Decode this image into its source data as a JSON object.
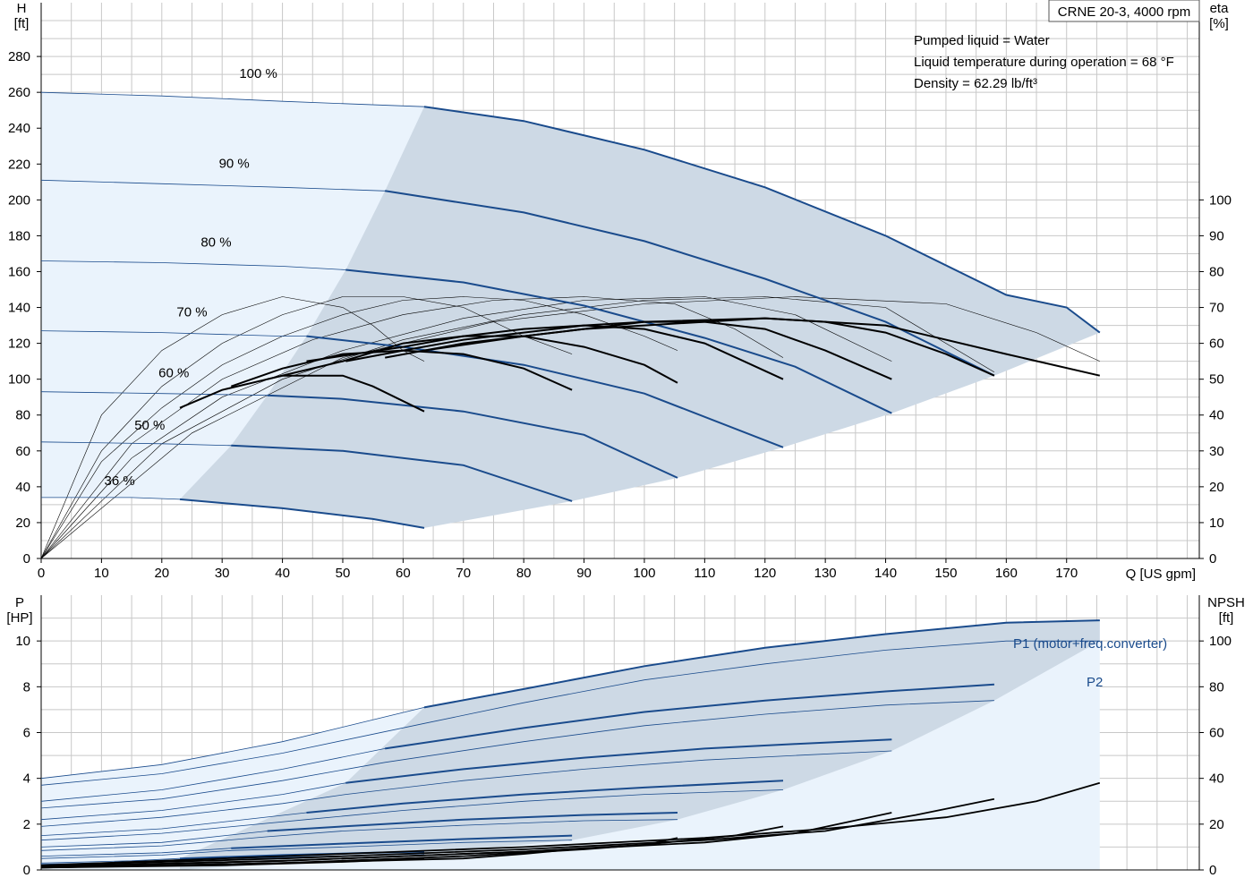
{
  "chart_data": [
    {
      "type": "line",
      "title": "CRNE 20-3, 4000 rpm",
      "notes": [
        "Pumped liquid = Water",
        "Liquid temperature during operation = 68 °F",
        "Density = 62.29 lb/ft³"
      ],
      "xlabel": "Q [US gpm]",
      "ylabel": [
        "H",
        "[ft]"
      ],
      "y2label": [
        "eta",
        "[%]"
      ],
      "xlim": [
        0,
        192
      ],
      "ylim": [
        0,
        310
      ],
      "y2lim": [
        0,
        155
      ],
      "x_ticks": [
        0,
        10,
        20,
        30,
        40,
        50,
        60,
        70,
        80,
        90,
        100,
        110,
        120,
        130,
        140,
        150,
        160,
        170
      ],
      "y_ticks": [
        0,
        20,
        40,
        60,
        80,
        100,
        120,
        140,
        160,
        180,
        200,
        220,
        240,
        260,
        280
      ],
      "y2_ticks": [
        0,
        10,
        20,
        30,
        40,
        50,
        60,
        70,
        80,
        90,
        100
      ],
      "colors": {
        "curve": "#1a4b8c",
        "eta": "#000000",
        "light_fill": "#eaf3fc",
        "dark_fill": "#cdd9e5",
        "grid": "#c8c8c8"
      },
      "speed_curves": [
        {
          "label": "100 %",
          "x": [
            0,
            20,
            40,
            63.5,
            80,
            100,
            120,
            140,
            160,
            170,
            175.5
          ],
          "y": [
            260,
            258,
            255,
            252,
            244,
            228,
            207,
            180,
            147,
            140,
            126
          ]
        },
        {
          "label": "90 %",
          "x": [
            0,
            20,
            40,
            57,
            80,
            100,
            120,
            140,
            158
          ],
          "y": [
            211,
            209,
            207,
            205,
            193,
            177,
            156,
            132,
            102
          ]
        },
        {
          "label": "80 %",
          "x": [
            0,
            20,
            40,
            50.5,
            70,
            90,
            110,
            125,
            141
          ],
          "y": [
            166,
            165,
            163,
            161,
            154,
            141,
            123,
            107,
            81
          ]
        },
        {
          "label": "70 %",
          "x": [
            0,
            20,
            40,
            44,
            60,
            80,
            100,
            123
          ],
          "y": [
            127,
            126,
            124,
            124,
            118,
            108,
            92,
            62
          ]
        },
        {
          "label": "60 %",
          "x": [
            0,
            20,
            37.5,
            50,
            70,
            90,
            105.5
          ],
          "y": [
            93,
            92,
            91,
            89,
            82,
            69,
            45
          ]
        },
        {
          "label": "50 %",
          "x": [
            0,
            20,
            31.5,
            50,
            70,
            88
          ],
          "y": [
            65,
            64,
            63,
            60,
            52,
            32
          ]
        },
        {
          "label": "36 %",
          "x": [
            0,
            15,
            23,
            40,
            55,
            63.5
          ],
          "y": [
            34,
            34,
            33,
            28,
            22,
            17
          ]
        }
      ],
      "eta_curves": [
        {
          "x": [
            23,
            30,
            40,
            50,
            55,
            63.5
          ],
          "y": [
            42,
            47,
            51,
            51,
            48,
            41
          ]
        },
        {
          "x": [
            31.5,
            40,
            50,
            60,
            70,
            80,
            88
          ],
          "y": [
            48,
            53,
            57,
            58,
            57,
            53,
            47
          ]
        },
        {
          "x": [
            37.5,
            50,
            60,
            70,
            80,
            90,
            100,
            105.5
          ],
          "y": [
            50,
            55,
            60,
            62,
            62,
            59,
            54,
            49
          ]
        },
        {
          "x": [
            44,
            60,
            70,
            80,
            90,
            100,
            110,
            123
          ],
          "y": [
            55,
            59,
            62,
            64,
            65,
            64,
            60,
            50
          ]
        },
        {
          "x": [
            50.5,
            60,
            70,
            80,
            90,
            100,
            110,
            120,
            130,
            141
          ],
          "y": [
            55,
            58,
            61,
            63,
            65,
            66,
            66,
            64,
            58,
            50
          ]
        },
        {
          "x": [
            57,
            70,
            80,
            90,
            100,
            110,
            120,
            130,
            140,
            150,
            158
          ],
          "y": [
            56,
            60,
            62,
            64,
            65,
            66,
            67,
            66,
            63,
            57,
            51
          ]
        },
        {
          "x": [
            63.5,
            80,
            100,
            120,
            140,
            160,
            175.5
          ],
          "y": [
            58,
            62,
            66,
            67,
            65,
            57,
            51
          ]
        }
      ],
      "eta_extensions": [
        {
          "x": [
            0,
            10,
            20,
            30,
            40,
            50,
            55,
            60,
            63.5
          ],
          "y": [
            0,
            40,
            58,
            68,
            73,
            70,
            65,
            58,
            55
          ]
        },
        {
          "x": [
            0,
            10,
            20,
            30,
            40,
            50,
            60,
            70,
            80,
            88
          ],
          "y": [
            0,
            30,
            48,
            60,
            68,
            73,
            73,
            70,
            62,
            57
          ]
        },
        {
          "x": [
            0,
            10,
            20,
            30,
            40,
            50,
            60,
            70,
            80,
            90,
            100,
            105.5
          ],
          "y": [
            0,
            27,
            42,
            54,
            62,
            68,
            72,
            73,
            72,
            68,
            62,
            58
          ]
        },
        {
          "x": [
            0,
            15,
            30,
            45,
            60,
            75,
            90,
            105,
            115,
            123
          ],
          "y": [
            0,
            32,
            50,
            61,
            68,
            72,
            73,
            71,
            64,
            56
          ]
        },
        {
          "x": [
            0,
            15,
            30,
            50,
            70,
            90,
            110,
            125,
            141
          ],
          "y": [
            0,
            28,
            45,
            58,
            67,
            72,
            73,
            68,
            55
          ]
        },
        {
          "x": [
            0,
            20,
            40,
            60,
            80,
            100,
            120,
            140,
            158
          ],
          "y": [
            0,
            32,
            50,
            61,
            68,
            72,
            73,
            70,
            52
          ]
        },
        {
          "x": [
            0,
            25,
            50,
            75,
            100,
            125,
            150,
            165,
            175.5
          ],
          "y": [
            0,
            35,
            56,
            66,
            71,
            73,
            71,
            63,
            55
          ]
        }
      ]
    },
    {
      "type": "line",
      "xlim": [
        0,
        192
      ],
      "ylim": [
        0,
        12
      ],
      "y2lim": [
        0,
        120
      ],
      "ylabel": [
        "P",
        "[HP]"
      ],
      "y2label": [
        "NPSH",
        "[ft]"
      ],
      "y_ticks": [
        0,
        2,
        4,
        6,
        8,
        10
      ],
      "y2_ticks": [
        0,
        20,
        40,
        60,
        80,
        100
      ],
      "series_labels": {
        "p1": "P1 (motor+freq.converter)",
        "p2": "P2"
      },
      "p1_curves": [
        {
          "x": [
            0,
            20,
            40,
            63.5,
            80,
            100,
            120,
            140,
            160,
            175.5
          ],
          "y": [
            4.0,
            4.6,
            5.6,
            7.1,
            7.9,
            8.9,
            9.7,
            10.3,
            10.8,
            10.9
          ]
        },
        {
          "x": [
            0,
            20,
            40,
            57,
            80,
            100,
            120,
            140,
            158
          ],
          "y": [
            3.0,
            3.5,
            4.4,
            5.3,
            6.2,
            6.9,
            7.4,
            7.8,
            8.1
          ]
        },
        {
          "x": [
            0,
            20,
            40,
            50.5,
            70,
            90,
            110,
            125,
            141
          ],
          "y": [
            2.2,
            2.6,
            3.3,
            3.8,
            4.4,
            4.9,
            5.3,
            5.5,
            5.7
          ]
        },
        {
          "x": [
            0,
            20,
            44,
            60,
            80,
            100,
            123
          ],
          "y": [
            1.5,
            1.8,
            2.5,
            2.9,
            3.3,
            3.6,
            3.9
          ]
        },
        {
          "x": [
            0,
            20,
            37.5,
            50,
            70,
            90,
            105.5
          ],
          "y": [
            1.0,
            1.2,
            1.7,
            1.9,
            2.2,
            2.4,
            2.5
          ]
        },
        {
          "x": [
            0,
            20,
            31.5,
            50,
            70,
            88
          ],
          "y": [
            0.6,
            0.75,
            0.95,
            1.15,
            1.35,
            1.5
          ]
        },
        {
          "x": [
            0,
            15,
            23,
            40,
            55,
            63.5
          ],
          "y": [
            0.3,
            0.4,
            0.5,
            0.65,
            0.75,
            0.8
          ]
        }
      ],
      "p2_curves": [
        {
          "x": [
            0,
            20,
            40,
            63.5,
            80,
            100,
            120,
            140,
            160,
            175.5
          ],
          "y": [
            3.7,
            4.2,
            5.1,
            6.4,
            7.3,
            8.3,
            9.0,
            9.6,
            10.0,
            10.0
          ]
        },
        {
          "x": [
            0,
            20,
            40,
            57,
            80,
            100,
            120,
            140,
            158
          ],
          "y": [
            2.7,
            3.1,
            3.9,
            4.7,
            5.6,
            6.3,
            6.8,
            7.2,
            7.4
          ]
        },
        {
          "x": [
            0,
            20,
            40,
            50.5,
            70,
            90,
            110,
            125,
            141
          ],
          "y": [
            1.9,
            2.3,
            2.9,
            3.3,
            3.9,
            4.4,
            4.8,
            5.0,
            5.2
          ]
        },
        {
          "x": [
            0,
            20,
            44,
            60,
            80,
            100,
            123
          ],
          "y": [
            1.3,
            1.6,
            2.2,
            2.6,
            3.0,
            3.3,
            3.5
          ]
        },
        {
          "x": [
            0,
            20,
            37.5,
            50,
            70,
            90,
            105.5
          ],
          "y": [
            0.85,
            1.05,
            1.45,
            1.7,
            1.95,
            2.15,
            2.2
          ]
        },
        {
          "x": [
            0,
            20,
            31.5,
            50,
            70,
            88
          ],
          "y": [
            0.5,
            0.65,
            0.85,
            1.0,
            1.2,
            1.3
          ]
        },
        {
          "x": [
            0,
            15,
            23,
            40,
            55,
            63.5
          ],
          "y": [
            0.25,
            0.35,
            0.45,
            0.55,
            0.65,
            0.7
          ]
        }
      ],
      "npsh_curves": [
        {
          "x": [
            0,
            40,
            80,
            110,
            130,
            150,
            165,
            175.5
          ],
          "y": [
            2,
            6,
            10,
            14,
            18,
            23,
            30,
            38
          ]
        },
        {
          "x": [
            0,
            40,
            80,
            110,
            130,
            145,
            158
          ],
          "y": [
            2,
            5,
            9,
            13,
            17,
            24,
            31
          ]
        },
        {
          "x": [
            0,
            40,
            80,
            110,
            125,
            141
          ],
          "y": [
            1.5,
            4,
            8,
            12,
            16,
            25
          ]
        },
        {
          "x": [
            0,
            40,
            80,
            100,
            115,
            123
          ],
          "y": [
            1.5,
            4,
            8,
            11,
            15,
            19
          ]
        },
        {
          "x": [
            0,
            40,
            70,
            90,
            100,
            105.5
          ],
          "y": [
            1,
            3,
            6,
            9,
            11,
            14
          ]
        },
        {
          "x": [
            0,
            40,
            70,
            80,
            88
          ],
          "y": [
            1,
            3,
            5,
            7,
            9
          ]
        },
        {
          "x": [
            0,
            30,
            50,
            63.5
          ],
          "y": [
            1,
            2,
            3.5,
            5
          ]
        }
      ]
    }
  ]
}
